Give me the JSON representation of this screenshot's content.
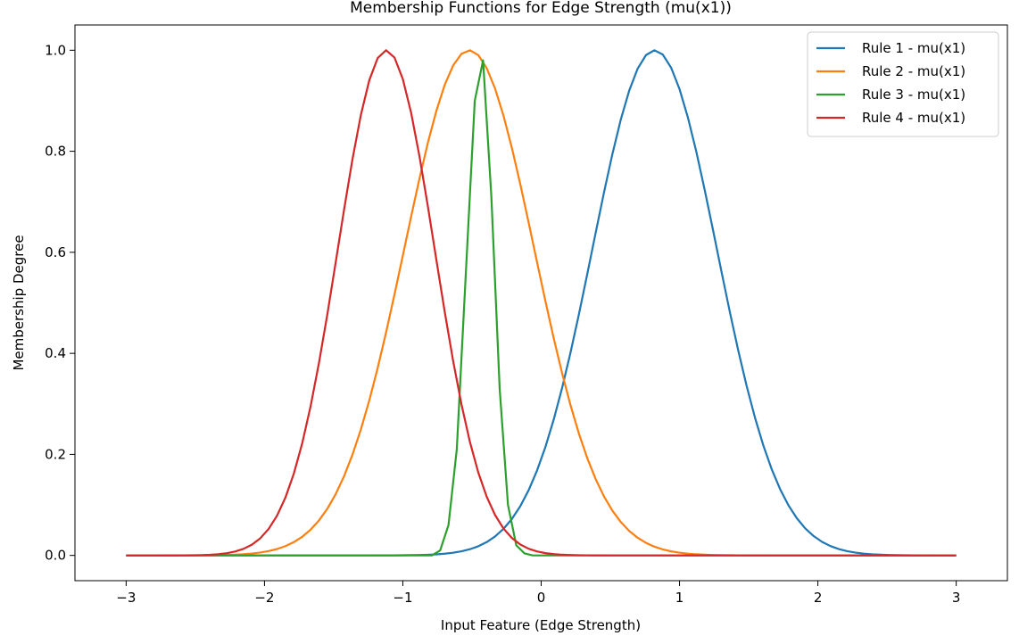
{
  "chart_data": {
    "type": "line",
    "title": "Membership Functions for Edge Strength (mu(x1))",
    "xlabel": "Input Feature (Edge Strength)",
    "ylabel": "Membership Degree",
    "xlim": [
      -3.37,
      3.37
    ],
    "ylim": [
      -0.05,
      1.05
    ],
    "xticks": [
      -3,
      -2,
      -1,
      0,
      1,
      2,
      3
    ],
    "xtick_labels": [
      "−3",
      "−2",
      "−1",
      "0",
      "1",
      "2",
      "3"
    ],
    "yticks": [
      0.0,
      0.2,
      0.4,
      0.6,
      0.8,
      1.0
    ],
    "ytick_labels": [
      "0.0",
      "0.2",
      "0.4",
      "0.6",
      "0.8",
      "1.0"
    ],
    "grid": false,
    "legend_position": "top-right",
    "x_range": [
      -3,
      3
    ],
    "series": [
      {
        "name": "Rule 1 - mu(x1)",
        "color": "#1f77b4",
        "kind": "gaussian",
        "center": 0.82,
        "sigma": 0.45
      },
      {
        "name": "Rule 2 - mu(x1)",
        "color": "#ff7f0e",
        "kind": "gaussian",
        "center": -0.52,
        "sigma": 0.47
      },
      {
        "name": "Rule 3 - mu(x1)",
        "color": "#2ca02c",
        "kind": "points",
        "x": [
          -3.0,
          -0.79,
          -0.73,
          -0.67,
          -0.61,
          -0.55,
          -0.48,
          -0.42,
          -0.36,
          -0.3,
          -0.24,
          -0.18,
          -0.12,
          -0.06,
          0.0,
          3.0
        ],
        "y": [
          0.0,
          0.0,
          0.01,
          0.06,
          0.21,
          0.53,
          0.9,
          0.98,
          0.71,
          0.33,
          0.1,
          0.02,
          0.004,
          0.0,
          0.0,
          0.0
        ]
      },
      {
        "name": "Rule 4 - mu(x1)",
        "color": "#d62728",
        "kind": "gaussian",
        "center": -1.12,
        "sigma": 0.35
      }
    ]
  }
}
